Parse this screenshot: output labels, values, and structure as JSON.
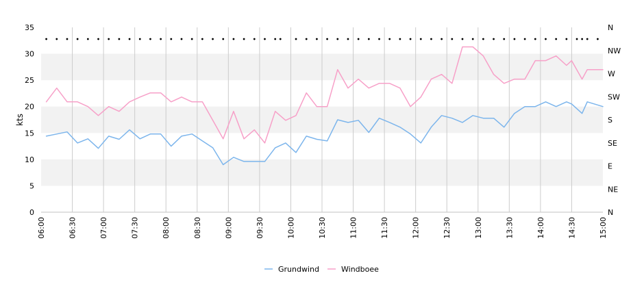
{
  "chart_data": {
    "type": "line",
    "title": "",
    "xlabel": "",
    "ylabel": "kts",
    "ylim": [
      0,
      35
    ],
    "y_ticks": [
      0,
      5,
      10,
      15,
      20,
      25,
      30,
      35
    ],
    "y2_ticks": [
      "N",
      "NE",
      "E",
      "SE",
      "S",
      "SW",
      "W",
      "NW",
      "N"
    ],
    "x_range": [
      "06:00",
      "15:00"
    ],
    "x_ticks": [
      "06:00",
      "06:30",
      "07:00",
      "07:30",
      "08:00",
      "08:30",
      "09:00",
      "09:30",
      "10:00",
      "10:30",
      "11:00",
      "11:30",
      "12:00",
      "12:30",
      "13:00",
      "13:30",
      "14:00",
      "14:30",
      "15:00"
    ],
    "grid": "horizontal bands and vertical lines",
    "legend_position": "bottom-center",
    "series": [
      {
        "name": "Grundwind",
        "color": "#7cb5ec",
        "x": [
          "06:05",
          "06:15",
          "06:25",
          "06:35",
          "06:45",
          "06:55",
          "07:05",
          "07:15",
          "07:25",
          "07:35",
          "07:45",
          "07:55",
          "08:05",
          "08:15",
          "08:25",
          "08:35",
          "08:45",
          "08:55",
          "09:05",
          "09:15",
          "09:25",
          "09:35",
          "09:45",
          "09:55",
          "10:05",
          "10:15",
          "10:25",
          "10:35",
          "10:45",
          "10:55",
          "11:05",
          "11:15",
          "11:25",
          "11:35",
          "11:45",
          "11:55",
          "12:05",
          "12:15",
          "12:25",
          "12:35",
          "12:45",
          "12:55",
          "13:05",
          "13:15",
          "13:25",
          "13:35",
          "13:45",
          "13:55",
          "14:05",
          "14:15",
          "14:25",
          "14:30",
          "14:40",
          "14:45",
          "15:00"
        ],
        "values": [
          14.4,
          14.8,
          15.2,
          13.1,
          13.9,
          12.1,
          14.4,
          13.8,
          15.6,
          13.9,
          14.8,
          14.8,
          12.5,
          14.4,
          14.8,
          13.5,
          12.2,
          9.0,
          10.4,
          9.6,
          9.6,
          9.6,
          12.2,
          13.1,
          11.3,
          14.4,
          13.8,
          13.5,
          17.5,
          17.0,
          17.4,
          15.1,
          17.8,
          17.0,
          16.1,
          14.8,
          13.1,
          16.1,
          18.3,
          17.8,
          17.0,
          18.3,
          17.8,
          17.8,
          16.1,
          18.7,
          20.0,
          20.0,
          20.9,
          20.0,
          20.9,
          20.5,
          18.7,
          20.9,
          20.0
        ]
      },
      {
        "name": "Windboee",
        "color": "#f7a0c8",
        "x": [
          "06:05",
          "06:15",
          "06:25",
          "06:35",
          "06:45",
          "06:55",
          "07:05",
          "07:15",
          "07:25",
          "07:35",
          "07:45",
          "07:55",
          "08:05",
          "08:15",
          "08:25",
          "08:35",
          "08:45",
          "08:55",
          "09:05",
          "09:15",
          "09:25",
          "09:35",
          "09:45",
          "09:55",
          "10:05",
          "10:15",
          "10:25",
          "10:35",
          "10:45",
          "10:55",
          "11:05",
          "11:15",
          "11:25",
          "11:35",
          "11:45",
          "11:55",
          "12:05",
          "12:15",
          "12:25",
          "12:35",
          "12:45",
          "12:55",
          "13:05",
          "13:15",
          "13:25",
          "13:35",
          "13:45",
          "13:55",
          "14:05",
          "14:15",
          "14:25",
          "14:30",
          "14:40",
          "14:45",
          "15:00"
        ],
        "values": [
          20.9,
          23.5,
          20.9,
          20.9,
          20.0,
          18.3,
          20.0,
          19.1,
          20.9,
          21.8,
          22.6,
          22.6,
          20.9,
          21.8,
          20.9,
          20.9,
          17.4,
          13.9,
          19.1,
          13.9,
          15.6,
          13.1,
          19.1,
          17.4,
          18.3,
          22.6,
          20.0,
          20.0,
          27.0,
          23.5,
          25.2,
          23.5,
          24.4,
          24.4,
          23.5,
          20.0,
          21.8,
          25.2,
          26.1,
          24.4,
          31.3,
          31.3,
          29.6,
          26.1,
          24.4,
          25.2,
          25.2,
          28.7,
          28.7,
          29.6,
          27.8,
          28.7,
          25.2,
          27.0,
          27.0
        ]
      }
    ],
    "direction_markers": {
      "level_label": "NW",
      "times": [
        "06:05",
        "06:15",
        "06:25",
        "06:35",
        "06:45",
        "06:55",
        "07:05",
        "07:15",
        "07:25",
        "07:35",
        "07:45",
        "07:55",
        "08:05",
        "08:15",
        "08:25",
        "08:35",
        "08:45",
        "08:55",
        "09:05",
        "09:15",
        "09:25",
        "09:35",
        "09:45",
        "09:50",
        "10:05",
        "10:15",
        "10:25",
        "10:35",
        "10:45",
        "10:55",
        "11:05",
        "11:15",
        "11:25",
        "11:35",
        "11:45",
        "11:55",
        "12:05",
        "12:15",
        "12:25",
        "12:35",
        "12:45",
        "12:55",
        "13:05",
        "13:15",
        "13:25",
        "13:35",
        "13:45",
        "13:55",
        "14:05",
        "14:15",
        "14:25",
        "14:35",
        "14:40",
        "14:45",
        "14:55"
      ]
    }
  }
}
